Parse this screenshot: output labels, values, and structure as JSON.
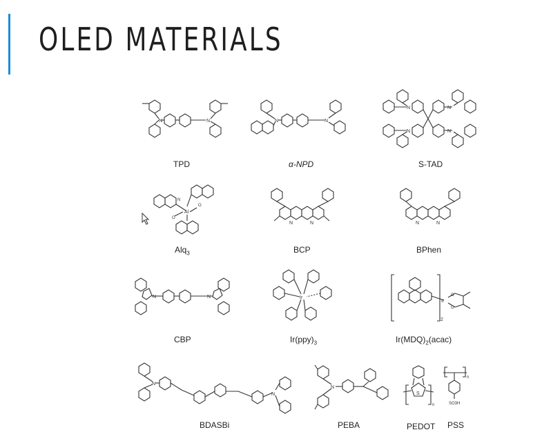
{
  "slide": {
    "title": "OLED MATERIALS",
    "accent_color": "#1a8fd6"
  },
  "captions": {
    "tpd": "TPD",
    "anpd": "α-NPD",
    "stad": "S-TAD",
    "alq3": "Alq",
    "alq3_sub": "3",
    "bcp": "BCP",
    "bphen": "BPhen",
    "cbp": "CBP",
    "irppy": "Ir(ppy)",
    "irppy_sub": "3",
    "irmdq_a": "Ir(MDQ)",
    "irmdq_sub": "2",
    "irmdq_b": "(acac)",
    "bdasbi": "BDASBi",
    "peba": "PEBA",
    "pedot": "PEDOT",
    "pss": "PSS"
  },
  "atom_labels": {
    "n": "N",
    "o": "O",
    "s": "S",
    "ir": "Ir",
    "al": "Al",
    "so3h": "SO3H",
    "n_sub": "n",
    "bracket_sub": "2"
  }
}
